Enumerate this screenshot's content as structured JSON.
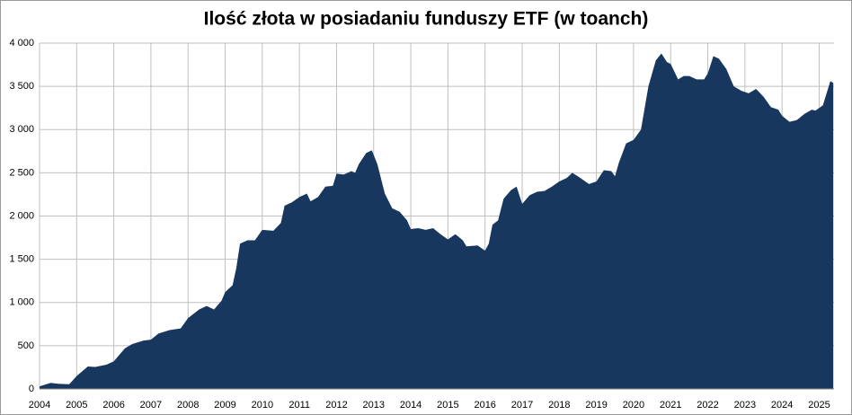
{
  "chart_data": {
    "type": "area",
    "title": "Ilość złota w posiadaniu funduszy ETF (w toanch)",
    "color": "#17375e",
    "grid": true,
    "x": [
      2004.0,
      2004.3,
      2004.5,
      2004.8,
      2005.0,
      2005.3,
      2005.5,
      2005.8,
      2006.0,
      2006.3,
      2006.5,
      2006.8,
      2007.0,
      2007.2,
      2007.5,
      2007.8,
      2008.0,
      2008.3,
      2008.5,
      2008.7,
      2008.9,
      2009.0,
      2009.2,
      2009.3,
      2009.4,
      2009.6,
      2009.8,
      2010.0,
      2010.3,
      2010.5,
      2010.6,
      2010.8,
      2011.0,
      2011.2,
      2011.3,
      2011.5,
      2011.7,
      2011.9,
      2012.0,
      2012.2,
      2012.4,
      2012.5,
      2012.6,
      2012.8,
      2012.95,
      2013.1,
      2013.3,
      2013.5,
      2013.7,
      2013.9,
      2014.0,
      2014.2,
      2014.4,
      2014.6,
      2014.8,
      2015.0,
      2015.2,
      2015.4,
      2015.5,
      2015.8,
      2016.0,
      2016.1,
      2016.2,
      2016.35,
      2016.5,
      2016.7,
      2016.85,
      2017.0,
      2017.2,
      2017.4,
      2017.6,
      2017.8,
      2018.0,
      2018.2,
      2018.35,
      2018.5,
      2018.8,
      2019.0,
      2019.2,
      2019.4,
      2019.5,
      2019.6,
      2019.8,
      2020.0,
      2020.2,
      2020.4,
      2020.6,
      2020.75,
      2020.9,
      2021.0,
      2021.2,
      2021.35,
      2021.5,
      2021.7,
      2021.9,
      2022.0,
      2022.15,
      2022.3,
      2022.5,
      2022.7,
      2022.9,
      2023.1,
      2023.3,
      2023.5,
      2023.7,
      2023.9,
      2024.0,
      2024.2,
      2024.4,
      2024.6,
      2024.8,
      2024.9,
      2025.1,
      2025.3,
      2025.38
    ],
    "values": [
      30,
      70,
      60,
      55,
      150,
      260,
      255,
      280,
      320,
      470,
      520,
      560,
      570,
      640,
      680,
      700,
      820,
      920,
      960,
      920,
      1020,
      1120,
      1200,
      1400,
      1680,
      1720,
      1720,
      1840,
      1830,
      1920,
      2120,
      2160,
      2220,
      2260,
      2170,
      2220,
      2340,
      2350,
      2490,
      2480,
      2520,
      2500,
      2600,
      2730,
      2760,
      2600,
      2260,
      2090,
      2050,
      1950,
      1850,
      1860,
      1840,
      1860,
      1790,
      1730,
      1790,
      1720,
      1650,
      1660,
      1600,
      1680,
      1900,
      1950,
      2200,
      2300,
      2340,
      2140,
      2240,
      2280,
      2290,
      2340,
      2400,
      2440,
      2500,
      2460,
      2370,
      2400,
      2530,
      2520,
      2460,
      2610,
      2840,
      2880,
      3000,
      3500,
      3800,
      3880,
      3780,
      3760,
      3580,
      3620,
      3620,
      3580,
      3580,
      3650,
      3850,
      3820,
      3700,
      3500,
      3450,
      3420,
      3470,
      3380,
      3260,
      3230,
      3160,
      3090,
      3110,
      3180,
      3230,
      3220,
      3280,
      3560,
      3540
    ],
    "xlim": [
      2004,
      2025.4
    ],
    "xticks": [
      2004,
      2005,
      2006,
      2007,
      2008,
      2009,
      2010,
      2011,
      2012,
      2013,
      2014,
      2015,
      2016,
      2017,
      2018,
      2019,
      2020,
      2021,
      2022,
      2023,
      2024,
      2025
    ],
    "ylim": [
      0,
      4000
    ],
    "yticks": [
      0,
      500,
      {
        "value": 1000,
        "label": "1 000"
      },
      {
        "value": 1500,
        "label": "1 500"
      },
      {
        "value": 2000,
        "label": "2 000"
      },
      {
        "value": 2500,
        "label": "2 500"
      },
      {
        "value": 3000,
        "label": "3 000"
      },
      {
        "value": 3500,
        "label": "3 500"
      },
      {
        "value": 4000,
        "label": "4 000"
      }
    ]
  }
}
